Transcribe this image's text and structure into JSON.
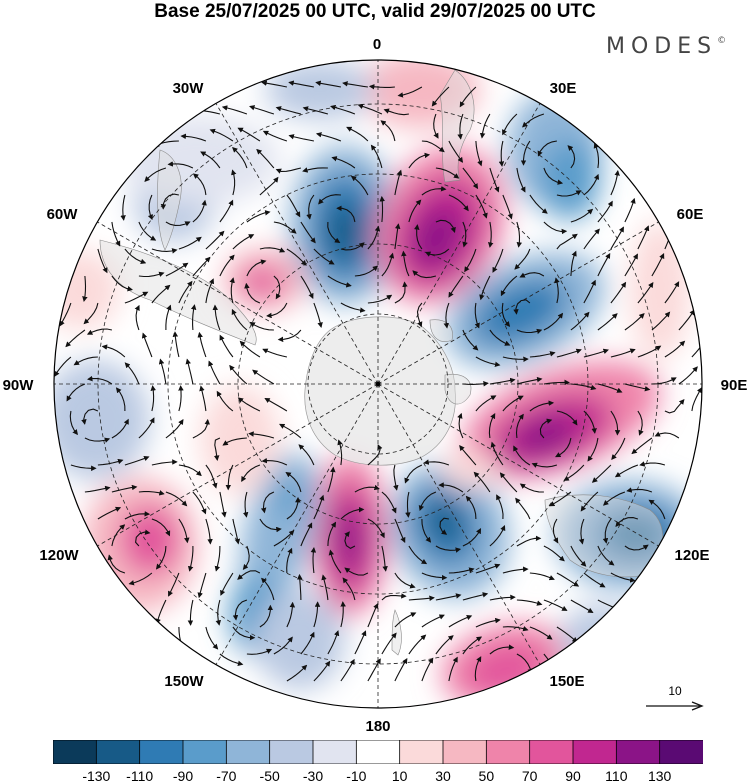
{
  "title": "Base 25/07/2025 00 UTC, valid 29/07/2025 00 UTC",
  "logo": {
    "text": "MODES",
    "mark": "©"
  },
  "longitude_labels": [
    {
      "id": "0",
      "text": "0"
    },
    {
      "id": "30e",
      "text": "30E"
    },
    {
      "id": "60e",
      "text": "60E"
    },
    {
      "id": "90e",
      "text": "90E"
    },
    {
      "id": "120e",
      "text": "120E"
    },
    {
      "id": "150e",
      "text": "150E"
    },
    {
      "id": "180",
      "text": "180"
    },
    {
      "id": "150w",
      "text": "150W"
    },
    {
      "id": "120w",
      "text": "120W"
    },
    {
      "id": "90w",
      "text": "90W"
    },
    {
      "id": "60w",
      "text": "60W"
    },
    {
      "id": "30w",
      "text": "30W"
    }
  ],
  "vector_reference": {
    "label": "10"
  },
  "colorbar": {
    "colors": [
      "#0b3a5a",
      "#175a87",
      "#2f7bb4",
      "#5a9ccb",
      "#8fb5d8",
      "#bac9e2",
      "#e1e4f0",
      "#ffffff",
      "#fbdada",
      "#f6b8c2",
      "#ef84aa",
      "#e2559c",
      "#c12790",
      "#8b1487",
      "#5a0a73"
    ],
    "ticks": [
      "-130",
      "-110",
      "-90",
      "-70",
      "-50",
      "-30",
      "-10",
      "10",
      "30",
      "50",
      "70",
      "90",
      "110",
      "130"
    ]
  },
  "anomaly_centers": [
    {
      "sign": "negative",
      "value": -110,
      "sector": "10W"
    },
    {
      "sign": "positive",
      "value": 130,
      "sector": "30E"
    },
    {
      "sign": "negative",
      "value": -90,
      "sector": "60E"
    },
    {
      "sign": "positive",
      "value": 110,
      "sector": "100E"
    },
    {
      "sign": "negative",
      "value": -110,
      "sector": "120E"
    },
    {
      "sign": "negative",
      "value": -110,
      "sector": "160E"
    },
    {
      "sign": "positive",
      "value": 70,
      "sector": "150E"
    },
    {
      "sign": "positive",
      "value": 110,
      "sector": "170W"
    },
    {
      "sign": "negative",
      "value": -70,
      "sector": "150W"
    },
    {
      "sign": "positive",
      "value": 50,
      "sector": "120W"
    },
    {
      "sign": "positive",
      "value": 70,
      "sector": "50W"
    },
    {
      "sign": "negative",
      "value": -50,
      "sector": "40W"
    }
  ]
}
